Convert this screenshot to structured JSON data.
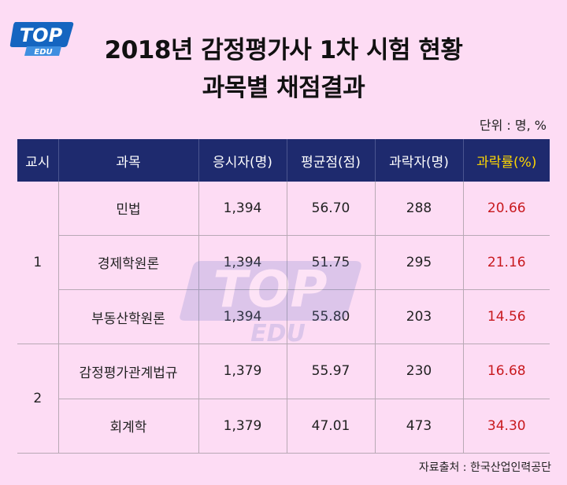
{
  "logo": {
    "top": "TOP",
    "bottom": "EDU"
  },
  "title": {
    "line1": "2018년 감정평가사 1차 시험 현황",
    "line2": "과목별 채점결과"
  },
  "unit_note": "단위 : 명, %",
  "headers": [
    "교시",
    "과목",
    "응시자(명)",
    "평균점(점)",
    "과락자(명)",
    "과락률(%)"
  ],
  "groups": [
    {
      "session": "1",
      "rows": [
        {
          "subject": "민법",
          "applicants": "1,394",
          "average": "56.70",
          "failed": "288",
          "fail_rate": "20.66"
        },
        {
          "subject": "경제학원론",
          "applicants": "1,394",
          "average": "51.75",
          "failed": "295",
          "fail_rate": "21.16"
        },
        {
          "subject": "부동산학원론",
          "applicants": "1,394",
          "average": "55.80",
          "failed": "203",
          "fail_rate": "14.56"
        }
      ]
    },
    {
      "session": "2",
      "rows": [
        {
          "subject": "감정평가관계법규",
          "applicants": "1,379",
          "average": "55.97",
          "failed": "230",
          "fail_rate": "16.68"
        },
        {
          "subject": "회계학",
          "applicants": "1,379",
          "average": "47.01",
          "failed": "473",
          "fail_rate": "34.30"
        }
      ]
    }
  ],
  "source": "자료출처 : 한국산업인력공단",
  "colors": {
    "background": "#fddcf4",
    "header_bg": "#1e2a6e",
    "header_accent": "#ffd700",
    "rate_text": "#c8191e"
  }
}
